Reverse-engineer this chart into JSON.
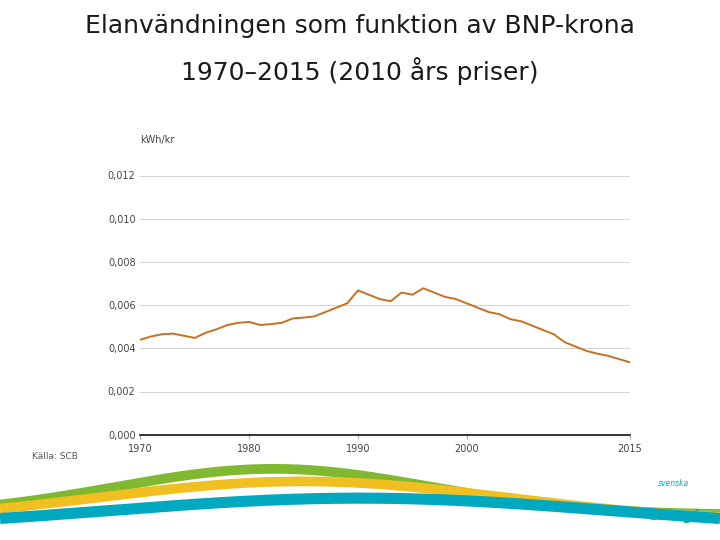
{
  "title_line1": "Elanvändningen som funktion av BNP-krona",
  "title_line2": "1970–2015 (2010 års priser)",
  "ylabel": "kWh/kr",
  "source": "Källa: SCB",
  "line_color": "#C87020",
  "background_color": "#ffffff",
  "xlim": [
    1970,
    2015
  ],
  "ylim": [
    0,
    0.013
  ],
  "yticks": [
    0.0,
    0.002,
    0.004,
    0.006,
    0.008,
    0.01,
    0.012
  ],
  "ytick_labels": [
    "0,000",
    "0,002",
    "0,004",
    "0,006",
    "0,008",
    "0,010",
    "0,012"
  ],
  "xticks": [
    1970,
    1980,
    1990,
    2000,
    2015
  ],
  "title_fontsize": 18,
  "tick_fontsize": 7,
  "years": [
    1970,
    1971,
    1972,
    1973,
    1974,
    1975,
    1976,
    1977,
    1978,
    1979,
    1980,
    1981,
    1982,
    1983,
    1984,
    1985,
    1986,
    1987,
    1988,
    1989,
    1990,
    1991,
    1992,
    1993,
    1994,
    1995,
    1996,
    1997,
    1998,
    1999,
    2000,
    2001,
    2002,
    2003,
    2004,
    2005,
    2006,
    2007,
    2008,
    2009,
    2010,
    2011,
    2012,
    2013,
    2014,
    2015
  ],
  "values": [
    0.0044,
    0.00455,
    0.00465,
    0.00468,
    0.00458,
    0.00448,
    0.00472,
    0.00488,
    0.00508,
    0.00518,
    0.00522,
    0.00508,
    0.00512,
    0.00518,
    0.00538,
    0.00542,
    0.00548,
    0.00568,
    0.00588,
    0.00608,
    0.00668,
    0.00648,
    0.00628,
    0.00618,
    0.00658,
    0.00648,
    0.00678,
    0.00658,
    0.00638,
    0.00628,
    0.00608,
    0.00588,
    0.00568,
    0.00558,
    0.00535,
    0.00525,
    0.00505,
    0.00485,
    0.00465,
    0.00428,
    0.00408,
    0.00388,
    0.00375,
    0.00365,
    0.0035,
    0.00335
  ],
  "wave_yellow": "#F0C020",
  "wave_green": "#80B830",
  "wave_blue": "#00A8C0"
}
